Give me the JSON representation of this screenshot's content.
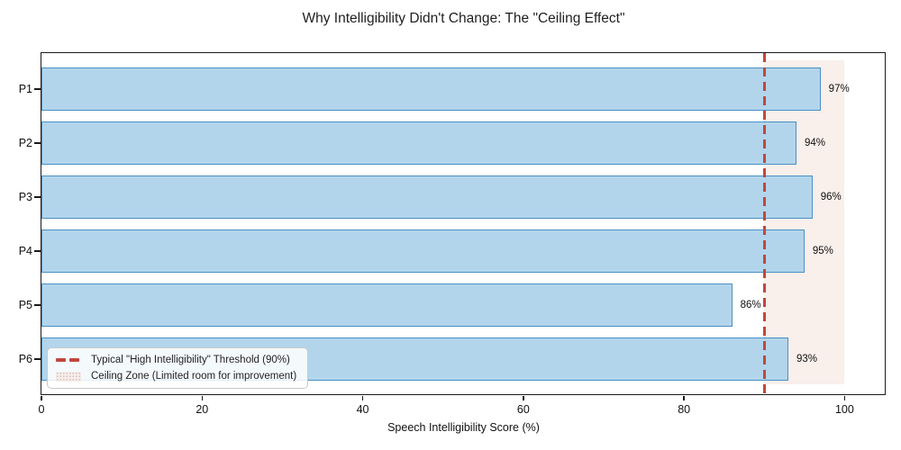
{
  "title": "Why Intelligibility Didn't Change: The \"Ceiling Effect\"",
  "chart_data": {
    "type": "bar",
    "orientation": "horizontal",
    "title": "Why Intelligibility Didn't Change: The \"Ceiling Effect\"",
    "categories": [
      "P1",
      "P2",
      "P3",
      "P4",
      "P5",
      "P6"
    ],
    "values": [
      97,
      94,
      96,
      95,
      86,
      93
    ],
    "value_labels": [
      "97%",
      "94%",
      "96%",
      "95%",
      "86%",
      "93%"
    ],
    "xlabel": "Speech Intelligibility Score (%)",
    "ylabel": "",
    "xlim": [
      0,
      105
    ],
    "xticks": [
      0,
      20,
      40,
      60,
      80,
      100
    ],
    "xtick_labels": [
      "0",
      "20",
      "40",
      "60",
      "80",
      "100"
    ],
    "grid": false,
    "threshold": {
      "value": 90,
      "label": "Typical \"High Intelligibility\" Threshold (90%)",
      "style": "dashed-vertical-line"
    },
    "ceiling_zone": {
      "from": 90,
      "to": 100,
      "label": "Ceiling Zone (Limited room for improvement)"
    },
    "legend_position": "lower-left",
    "colors": {
      "bar_fill": "#b2d5ec",
      "bar_edge": "#4b8fc4",
      "threshold_line": "#c4463d",
      "ceiling_zone_fill": "#f9efeb",
      "text": "#111111",
      "plot_border": "#1a1a1a"
    }
  }
}
